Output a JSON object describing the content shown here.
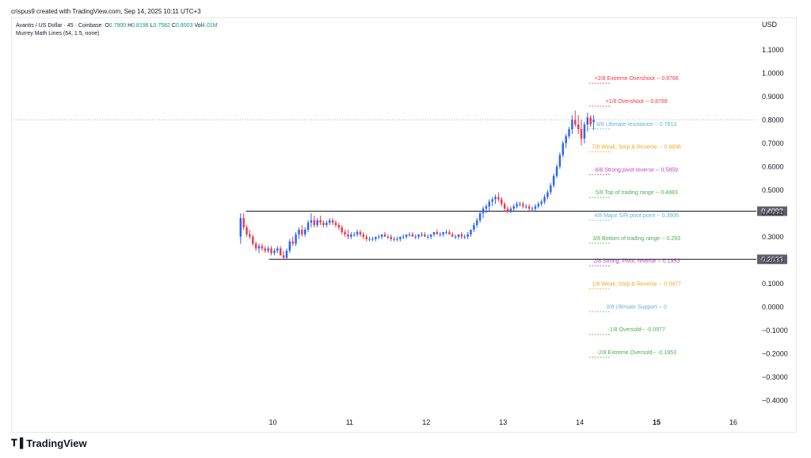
{
  "header": {
    "text": "crispus9 created with TradingView.com, Sep 14, 2025 10:11 UTC+3"
  },
  "legend": {
    "symbol": "Avantis / US Dollar · 45 · Coinbase",
    "o_label": "O",
    "o": "0.7900",
    "h_label": "H",
    "h": "0.8198",
    "l_label": "L",
    "l": "0.7582",
    "c_label": "C",
    "c": "0.8003",
    "vol_label": "Vol",
    "vol": "4.01M",
    "indicator": "Murrey Math Lines (64, 1.5, none)"
  },
  "brand": {
    "name": "TradingView"
  },
  "chart_data": {
    "type": "candlestick",
    "currency_label": "USD",
    "ylim": [
      -0.45,
      1.15
    ],
    "y_ticks": [
      "1.1000",
      "1.0000",
      "0.9000",
      "0.8000",
      "0.7000",
      "0.6000",
      "0.5000",
      "0.4000",
      "0.3000",
      "0.2000",
      "0.1000",
      "0.0000",
      "−0.1000",
      "−0.2000",
      "−0.3000",
      "−0.4000"
    ],
    "y_tick_values": [
      1.1,
      1.0,
      0.9,
      0.8,
      0.7,
      0.6,
      0.5,
      0.4,
      0.3,
      0.2,
      0.1,
      0.0,
      -0.1,
      -0.2,
      -0.3,
      -0.4
    ],
    "x_ticks": [
      {
        "label": "10",
        "day": 10,
        "bold": false
      },
      {
        "label": "11",
        "day": 11,
        "bold": false
      },
      {
        "label": "12",
        "day": 12,
        "bold": false
      },
      {
        "label": "13",
        "day": 13,
        "bold": false
      },
      {
        "label": "14",
        "day": 14,
        "bold": false
      },
      {
        "label": "15",
        "day": 15,
        "bold": true
      },
      {
        "label": "16",
        "day": 16,
        "bold": false
      }
    ],
    "xlim": [
      6.6,
      16.3
    ],
    "horizontal_lines": [
      {
        "value": 0.4092,
        "label": "0.4092",
        "color": "#131722",
        "start_day": 9.65
      },
      {
        "value": 0.2033,
        "label": "0.2033",
        "color": "#131722",
        "start_day": 9.95
      }
    ],
    "current_price": {
      "value": 0.8003,
      "color": "#b2b5be"
    },
    "murrey_levels": [
      {
        "label": "+2/8 Extreme Overshoot --  0.9766",
        "value": 0.9766,
        "color": "#f23645"
      },
      {
        "label": "+1/8 Overshoot --  0.8789",
        "value": 0.8789,
        "color": "#f23645"
      },
      {
        "label": "8/8 Ultimate resistance --  0.7813",
        "value": 0.7813,
        "color": "#5fb3d7"
      },
      {
        "label": "7/8 Weak, Stop & Reverse --  0.6836",
        "value": 0.6836,
        "color": "#f5a623"
      },
      {
        "label": "6/8 Strong pivot reverse --  0.5859",
        "value": 0.5859,
        "color": "#c23fc1"
      },
      {
        "label": "5/8 Top of trading range --  0.4883",
        "value": 0.4883,
        "color": "#4caf50"
      },
      {
        "label": "4/8 Major S/R pivot point --  0.3906",
        "value": 0.3906,
        "color": "#5fb3d7"
      },
      {
        "label": "3/8 Bottom of trading range --  0.293",
        "value": 0.293,
        "color": "#4caf50"
      },
      {
        "label": "2/8 Strong, Pivot, reverse --  0.1953",
        "value": 0.1953,
        "color": "#c23fc1"
      },
      {
        "label": "1/8 Weak, Stop & Reverse --  0.0977",
        "value": 0.0977,
        "color": "#f5a623"
      },
      {
        "label": "0/8 Ultimate Support --  0",
        "value": 0.0,
        "color": "#5fb3d7"
      },
      {
        "label": "-1/8 Oversold--  -0.0977",
        "value": -0.0977,
        "color": "#4caf50"
      },
      {
        "label": "-2/8 Extreme Oversold--  -0.1953",
        "value": -0.1953,
        "color": "#4caf50"
      }
    ],
    "murrey_start_day": 14.12,
    "up_color": "#2962ff",
    "down_color": "#f23645",
    "candles": [
      {
        "d": 9.58,
        "o": 0.3,
        "h": 0.4,
        "l": 0.27,
        "c": 0.38
      },
      {
        "d": 9.62,
        "o": 0.38,
        "h": 0.4,
        "l": 0.33,
        "c": 0.34
      },
      {
        "d": 9.66,
        "o": 0.34,
        "h": 0.35,
        "l": 0.3,
        "c": 0.31
      },
      {
        "d": 9.7,
        "o": 0.31,
        "h": 0.33,
        "l": 0.29,
        "c": 0.3
      },
      {
        "d": 9.74,
        "o": 0.3,
        "h": 0.31,
        "l": 0.26,
        "c": 0.27
      },
      {
        "d": 9.78,
        "o": 0.27,
        "h": 0.28,
        "l": 0.24,
        "c": 0.25
      },
      {
        "d": 9.82,
        "o": 0.25,
        "h": 0.27,
        "l": 0.23,
        "c": 0.26
      },
      {
        "d": 9.86,
        "o": 0.26,
        "h": 0.27,
        "l": 0.24,
        "c": 0.25
      },
      {
        "d": 9.9,
        "o": 0.25,
        "h": 0.26,
        "l": 0.23,
        "c": 0.24
      },
      {
        "d": 9.94,
        "o": 0.24,
        "h": 0.26,
        "l": 0.23,
        "c": 0.25
      },
      {
        "d": 9.98,
        "o": 0.25,
        "h": 0.26,
        "l": 0.22,
        "c": 0.23
      },
      {
        "d": 10.02,
        "o": 0.23,
        "h": 0.25,
        "l": 0.22,
        "c": 0.24
      },
      {
        "d": 10.06,
        "o": 0.24,
        "h": 0.26,
        "l": 0.23,
        "c": 0.25
      },
      {
        "d": 10.1,
        "o": 0.25,
        "h": 0.26,
        "l": 0.22,
        "c": 0.22
      },
      {
        "d": 10.14,
        "o": 0.22,
        "h": 0.24,
        "l": 0.2,
        "c": 0.21
      },
      {
        "d": 10.18,
        "o": 0.21,
        "h": 0.25,
        "l": 0.2,
        "c": 0.24
      },
      {
        "d": 10.22,
        "o": 0.24,
        "h": 0.29,
        "l": 0.23,
        "c": 0.28
      },
      {
        "d": 10.26,
        "o": 0.28,
        "h": 0.3,
        "l": 0.26,
        "c": 0.27
      },
      {
        "d": 10.3,
        "o": 0.27,
        "h": 0.32,
        "l": 0.26,
        "c": 0.31
      },
      {
        "d": 10.34,
        "o": 0.31,
        "h": 0.34,
        "l": 0.29,
        "c": 0.33
      },
      {
        "d": 10.38,
        "o": 0.33,
        "h": 0.35,
        "l": 0.3,
        "c": 0.31
      },
      {
        "d": 10.42,
        "o": 0.31,
        "h": 0.34,
        "l": 0.3,
        "c": 0.33
      },
      {
        "d": 10.46,
        "o": 0.33,
        "h": 0.37,
        "l": 0.32,
        "c": 0.36
      },
      {
        "d": 10.5,
        "o": 0.36,
        "h": 0.4,
        "l": 0.34,
        "c": 0.37
      },
      {
        "d": 10.54,
        "o": 0.37,
        "h": 0.39,
        "l": 0.34,
        "c": 0.35
      },
      {
        "d": 10.58,
        "o": 0.35,
        "h": 0.38,
        "l": 0.34,
        "c": 0.37
      },
      {
        "d": 10.62,
        "o": 0.37,
        "h": 0.39,
        "l": 0.35,
        "c": 0.36
      },
      {
        "d": 10.66,
        "o": 0.36,
        "h": 0.37,
        "l": 0.34,
        "c": 0.35
      },
      {
        "d": 10.7,
        "o": 0.35,
        "h": 0.37,
        "l": 0.34,
        "c": 0.36
      },
      {
        "d": 10.74,
        "o": 0.36,
        "h": 0.38,
        "l": 0.35,
        "c": 0.37
      },
      {
        "d": 10.78,
        "o": 0.37,
        "h": 0.38,
        "l": 0.35,
        "c": 0.36
      },
      {
        "d": 10.82,
        "o": 0.36,
        "h": 0.37,
        "l": 0.34,
        "c": 0.35
      },
      {
        "d": 10.86,
        "o": 0.35,
        "h": 0.36,
        "l": 0.33,
        "c": 0.34
      },
      {
        "d": 10.9,
        "o": 0.34,
        "h": 0.35,
        "l": 0.31,
        "c": 0.32
      },
      {
        "d": 10.94,
        "o": 0.32,
        "h": 0.33,
        "l": 0.3,
        "c": 0.31
      },
      {
        "d": 10.98,
        "o": 0.31,
        "h": 0.33,
        "l": 0.29,
        "c": 0.3
      },
      {
        "d": 11.02,
        "o": 0.3,
        "h": 0.32,
        "l": 0.29,
        "c": 0.31
      },
      {
        "d": 11.06,
        "o": 0.31,
        "h": 0.32,
        "l": 0.3,
        "c": 0.31
      },
      {
        "d": 11.1,
        "o": 0.31,
        "h": 0.33,
        "l": 0.3,
        "c": 0.32
      },
      {
        "d": 11.14,
        "o": 0.32,
        "h": 0.33,
        "l": 0.3,
        "c": 0.31
      },
      {
        "d": 11.18,
        "o": 0.31,
        "h": 0.32,
        "l": 0.29,
        "c": 0.3
      },
      {
        "d": 11.22,
        "o": 0.3,
        "h": 0.31,
        "l": 0.28,
        "c": 0.29
      },
      {
        "d": 11.26,
        "o": 0.29,
        "h": 0.3,
        "l": 0.28,
        "c": 0.29
      },
      {
        "d": 11.3,
        "o": 0.29,
        "h": 0.3,
        "l": 0.28,
        "c": 0.29
      },
      {
        "d": 11.34,
        "o": 0.29,
        "h": 0.3,
        "l": 0.28,
        "c": 0.3
      },
      {
        "d": 11.38,
        "o": 0.3,
        "h": 0.31,
        "l": 0.29,
        "c": 0.3
      },
      {
        "d": 11.42,
        "o": 0.3,
        "h": 0.31,
        "l": 0.29,
        "c": 0.31
      },
      {
        "d": 11.46,
        "o": 0.31,
        "h": 0.32,
        "l": 0.3,
        "c": 0.3
      },
      {
        "d": 11.5,
        "o": 0.3,
        "h": 0.31,
        "l": 0.29,
        "c": 0.3
      },
      {
        "d": 11.54,
        "o": 0.3,
        "h": 0.31,
        "l": 0.28,
        "c": 0.29
      },
      {
        "d": 11.58,
        "o": 0.29,
        "h": 0.3,
        "l": 0.28,
        "c": 0.29
      },
      {
        "d": 11.62,
        "o": 0.29,
        "h": 0.3,
        "l": 0.28,
        "c": 0.29
      },
      {
        "d": 11.66,
        "o": 0.29,
        "h": 0.3,
        "l": 0.28,
        "c": 0.3
      },
      {
        "d": 11.7,
        "o": 0.3,
        "h": 0.31,
        "l": 0.29,
        "c": 0.3
      },
      {
        "d": 11.74,
        "o": 0.3,
        "h": 0.31,
        "l": 0.29,
        "c": 0.31
      },
      {
        "d": 11.78,
        "o": 0.31,
        "h": 0.32,
        "l": 0.3,
        "c": 0.31
      },
      {
        "d": 11.82,
        "o": 0.31,
        "h": 0.32,
        "l": 0.3,
        "c": 0.3
      },
      {
        "d": 11.86,
        "o": 0.3,
        "h": 0.31,
        "l": 0.29,
        "c": 0.3
      },
      {
        "d": 11.9,
        "o": 0.3,
        "h": 0.31,
        "l": 0.29,
        "c": 0.31
      },
      {
        "d": 11.94,
        "o": 0.31,
        "h": 0.32,
        "l": 0.3,
        "c": 0.31
      },
      {
        "d": 11.98,
        "o": 0.31,
        "h": 0.32,
        "l": 0.3,
        "c": 0.3
      },
      {
        "d": 12.02,
        "o": 0.3,
        "h": 0.31,
        "l": 0.29,
        "c": 0.3
      },
      {
        "d": 12.06,
        "o": 0.3,
        "h": 0.31,
        "l": 0.29,
        "c": 0.31
      },
      {
        "d": 12.1,
        "o": 0.31,
        "h": 0.32,
        "l": 0.3,
        "c": 0.32
      },
      {
        "d": 12.14,
        "o": 0.32,
        "h": 0.33,
        "l": 0.31,
        "c": 0.31
      },
      {
        "d": 12.18,
        "o": 0.31,
        "h": 0.32,
        "l": 0.3,
        "c": 0.31
      },
      {
        "d": 12.22,
        "o": 0.31,
        "h": 0.32,
        "l": 0.3,
        "c": 0.32
      },
      {
        "d": 12.26,
        "o": 0.32,
        "h": 0.33,
        "l": 0.31,
        "c": 0.32
      },
      {
        "d": 12.3,
        "o": 0.32,
        "h": 0.33,
        "l": 0.31,
        "c": 0.31
      },
      {
        "d": 12.34,
        "o": 0.31,
        "h": 0.32,
        "l": 0.3,
        "c": 0.3
      },
      {
        "d": 12.38,
        "o": 0.3,
        "h": 0.31,
        "l": 0.29,
        "c": 0.3
      },
      {
        "d": 12.42,
        "o": 0.3,
        "h": 0.31,
        "l": 0.29,
        "c": 0.31
      },
      {
        "d": 12.46,
        "o": 0.31,
        "h": 0.32,
        "l": 0.29,
        "c": 0.3
      },
      {
        "d": 12.5,
        "o": 0.3,
        "h": 0.31,
        "l": 0.29,
        "c": 0.3
      },
      {
        "d": 12.54,
        "o": 0.3,
        "h": 0.32,
        "l": 0.29,
        "c": 0.31
      },
      {
        "d": 12.58,
        "o": 0.31,
        "h": 0.33,
        "l": 0.3,
        "c": 0.33
      },
      {
        "d": 12.62,
        "o": 0.33,
        "h": 0.36,
        "l": 0.32,
        "c": 0.35
      },
      {
        "d": 12.66,
        "o": 0.35,
        "h": 0.38,
        "l": 0.34,
        "c": 0.37
      },
      {
        "d": 12.7,
        "o": 0.37,
        "h": 0.41,
        "l": 0.36,
        "c": 0.4
      },
      {
        "d": 12.74,
        "o": 0.4,
        "h": 0.43,
        "l": 0.38,
        "c": 0.42
      },
      {
        "d": 12.78,
        "o": 0.42,
        "h": 0.44,
        "l": 0.4,
        "c": 0.43
      },
      {
        "d": 12.82,
        "o": 0.43,
        "h": 0.46,
        "l": 0.41,
        "c": 0.45
      },
      {
        "d": 12.86,
        "o": 0.45,
        "h": 0.47,
        "l": 0.43,
        "c": 0.46
      },
      {
        "d": 12.9,
        "o": 0.46,
        "h": 0.48,
        "l": 0.44,
        "c": 0.47
      },
      {
        "d": 12.94,
        "o": 0.47,
        "h": 0.49,
        "l": 0.45,
        "c": 0.46
      },
      {
        "d": 12.98,
        "o": 0.46,
        "h": 0.47,
        "l": 0.43,
        "c": 0.44
      },
      {
        "d": 13.02,
        "o": 0.44,
        "h": 0.45,
        "l": 0.41,
        "c": 0.42
      },
      {
        "d": 13.06,
        "o": 0.42,
        "h": 0.43,
        "l": 0.4,
        "c": 0.41
      },
      {
        "d": 13.1,
        "o": 0.41,
        "h": 0.43,
        "l": 0.4,
        "c": 0.42
      },
      {
        "d": 13.14,
        "o": 0.42,
        "h": 0.44,
        "l": 0.41,
        "c": 0.43
      },
      {
        "d": 13.18,
        "o": 0.43,
        "h": 0.45,
        "l": 0.42,
        "c": 0.44
      },
      {
        "d": 13.22,
        "o": 0.44,
        "h": 0.45,
        "l": 0.43,
        "c": 0.44
      },
      {
        "d": 13.26,
        "o": 0.44,
        "h": 0.45,
        "l": 0.42,
        "c": 0.43
      },
      {
        "d": 13.3,
        "o": 0.43,
        "h": 0.44,
        "l": 0.42,
        "c": 0.43
      },
      {
        "d": 13.34,
        "o": 0.43,
        "h": 0.44,
        "l": 0.41,
        "c": 0.42
      },
      {
        "d": 13.38,
        "o": 0.42,
        "h": 0.43,
        "l": 0.41,
        "c": 0.42
      },
      {
        "d": 13.42,
        "o": 0.42,
        "h": 0.44,
        "l": 0.41,
        "c": 0.43
      },
      {
        "d": 13.46,
        "o": 0.43,
        "h": 0.45,
        "l": 0.42,
        "c": 0.44
      },
      {
        "d": 13.5,
        "o": 0.44,
        "h": 0.46,
        "l": 0.43,
        "c": 0.45
      },
      {
        "d": 13.54,
        "o": 0.45,
        "h": 0.48,
        "l": 0.44,
        "c": 0.47
      },
      {
        "d": 13.58,
        "o": 0.47,
        "h": 0.5,
        "l": 0.46,
        "c": 0.49
      },
      {
        "d": 13.62,
        "o": 0.49,
        "h": 0.53,
        "l": 0.48,
        "c": 0.52
      },
      {
        "d": 13.66,
        "o": 0.52,
        "h": 0.57,
        "l": 0.51,
        "c": 0.56
      },
      {
        "d": 13.7,
        "o": 0.56,
        "h": 0.61,
        "l": 0.55,
        "c": 0.6
      },
      {
        "d": 13.74,
        "o": 0.6,
        "h": 0.66,
        "l": 0.59,
        "c": 0.65
      },
      {
        "d": 13.78,
        "o": 0.65,
        "h": 0.71,
        "l": 0.64,
        "c": 0.7
      },
      {
        "d": 13.82,
        "o": 0.7,
        "h": 0.74,
        "l": 0.68,
        "c": 0.73
      },
      {
        "d": 13.86,
        "o": 0.73,
        "h": 0.77,
        "l": 0.72,
        "c": 0.76
      },
      {
        "d": 13.9,
        "o": 0.76,
        "h": 0.82,
        "l": 0.74,
        "c": 0.8
      },
      {
        "d": 13.94,
        "o": 0.8,
        "h": 0.84,
        "l": 0.77,
        "c": 0.78
      },
      {
        "d": 13.98,
        "o": 0.78,
        "h": 0.82,
        "l": 0.74,
        "c": 0.76
      },
      {
        "d": 14.02,
        "o": 0.76,
        "h": 0.8,
        "l": 0.69,
        "c": 0.72
      },
      {
        "d": 14.06,
        "o": 0.72,
        "h": 0.79,
        "l": 0.7,
        "c": 0.78
      },
      {
        "d": 14.1,
        "o": 0.78,
        "h": 0.83,
        "l": 0.75,
        "c": 0.81
      },
      {
        "d": 14.14,
        "o": 0.81,
        "h": 0.82,
        "l": 0.77,
        "c": 0.78
      },
      {
        "d": 14.18,
        "o": 0.79,
        "h": 0.8198,
        "l": 0.7582,
        "c": 0.8003
      }
    ]
  }
}
